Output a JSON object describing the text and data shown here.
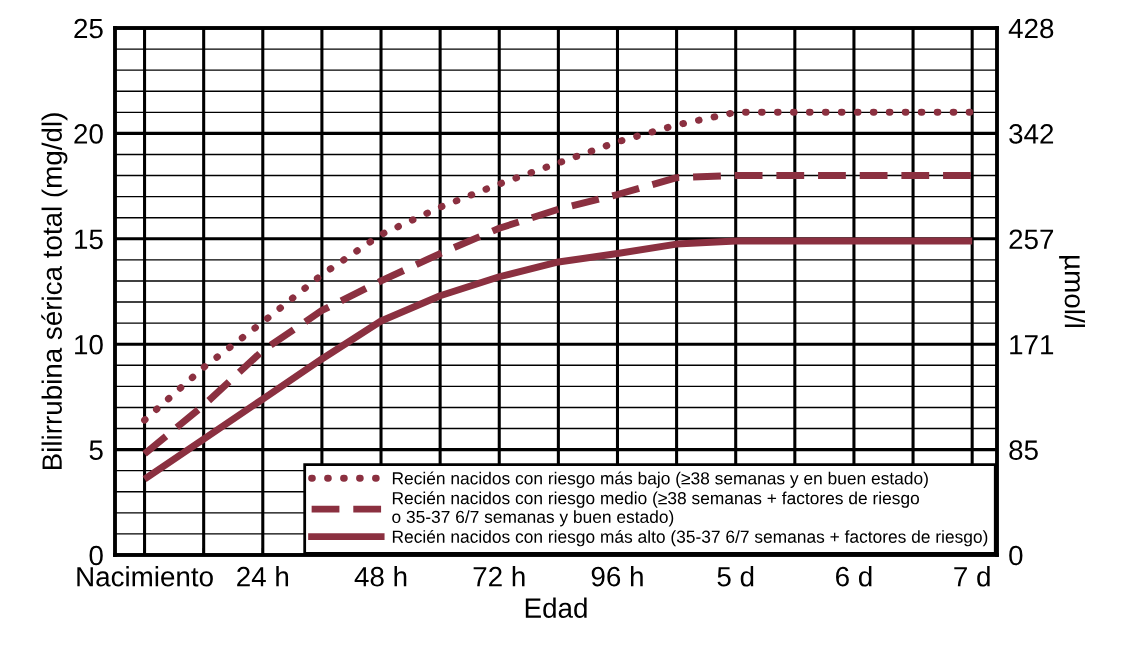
{
  "chart_data": {
    "type": "line",
    "xlabel": "Edad",
    "ylabel": "Bilirrubina sérica total (mg/dl)",
    "y2label": "µmol/l",
    "categories": [
      "Nacimiento",
      null,
      "24 h",
      null,
      "48 h",
      null,
      "72 h",
      null,
      "96 h",
      null,
      "5 d",
      null,
      "6 d",
      null,
      "7 d"
    ],
    "ylim": [
      0,
      25
    ],
    "y2lim": [
      0,
      427.5
    ],
    "yticks": [
      0,
      {
        "value": 1,
        "label": null
      },
      {
        "value": 2,
        "label": null
      },
      {
        "value": 3,
        "label": null
      },
      {
        "value": 4,
        "label": null
      },
      5,
      {
        "value": 6,
        "label": null
      },
      {
        "value": 7,
        "label": null
      },
      {
        "value": 8,
        "label": null
      },
      {
        "value": 9,
        "label": null
      },
      10,
      {
        "value": 11,
        "label": null
      },
      {
        "value": 12,
        "label": null
      },
      {
        "value": 13,
        "label": null
      },
      {
        "value": 14,
        "label": null
      },
      15,
      {
        "value": 16,
        "label": null
      },
      {
        "value": 17,
        "label": null
      },
      {
        "value": 18,
        "label": null
      },
      {
        "value": 19,
        "label": null
      },
      20,
      {
        "value": 21,
        "label": null
      },
      {
        "value": 22,
        "label": null
      },
      {
        "value": 23,
        "label": null
      },
      {
        "value": 24,
        "label": null
      },
      25
    ],
    "y2ticks": [
      0,
      {
        "value": 85.5,
        "label": "85"
      },
      171,
      {
        "value": 256.5,
        "label": "257"
      },
      342,
      {
        "value": 427.5,
        "label": "428"
      }
    ],
    "grid": true,
    "legend": "bottom right",
    "series": [
      {
        "name": "Recién nacidos con riesgo más bajo (≥38 semanas y en buen estado)",
        "color": "#8b3040",
        "line_style": "dotted",
        "values": [
          6.4,
          8.9,
          11.05,
          13.3,
          15.2,
          16.5,
          17.6,
          18.6,
          19.6,
          20.4,
          21.0,
          21.0,
          21.0,
          21.0,
          21.0
        ]
      },
      {
        "name": "Recién nacidos con riesgo medio (≥38 semanas + factores de riesgo\no 35-37 6/7 semanas y buen estado)",
        "color": "#8b3040",
        "line_style": "dashed",
        "values": [
          4.8,
          7.1,
          9.7,
          11.6,
          13.0,
          14.3,
          15.5,
          16.4,
          17.1,
          17.9,
          18.0,
          18.0,
          18.0,
          18.0,
          18.0
        ]
      },
      {
        "name": "Recién nacidos con riesgo más alto (35-37 6/7 semanas + factores de riesgo)",
        "color": "#8b3040",
        "line_style": "solid",
        "values": [
          3.6,
          5.5,
          7.4,
          9.3,
          11.1,
          12.3,
          13.2,
          13.9,
          14.3,
          14.75,
          14.9,
          14.9,
          14.9,
          14.9,
          14.9
        ]
      }
    ]
  }
}
